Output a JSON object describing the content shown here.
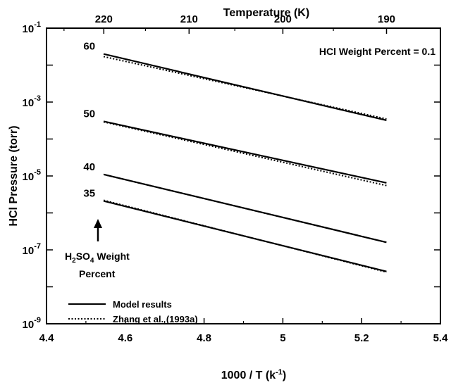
{
  "chart_data": {
    "type": "line",
    "title": "",
    "xlabel_main": "1000 / T (k",
    "xlabel_sup": "-1",
    "xlabel_end": ")",
    "ylabel": "HCl Pressure (torr)",
    "top_axis_label": "Temperature (K)",
    "xlim": [
      4.4,
      5.4
    ],
    "ylim": [
      1e-09,
      0.1
    ],
    "y_scale": "log",
    "grid": false,
    "x_ticks": [
      "4.4",
      "4.6",
      "4.8",
      "5",
      "5.2",
      "5.4"
    ],
    "y_ticks": [
      {
        "base": "10",
        "exp": "-1",
        "value": 0.1
      },
      {
        "base": "10",
        "exp": "-3",
        "value": 0.001
      },
      {
        "base": "10",
        "exp": "-5",
        "value": 1e-05
      },
      {
        "base": "10",
        "exp": "-7",
        "value": 1e-07
      },
      {
        "base": "10",
        "exp": "-9",
        "value": 1e-09
      }
    ],
    "top_ticks": [
      {
        "label": "220",
        "temperature": 220
      },
      {
        "label": "210",
        "temperature": 210
      },
      {
        "label": "200",
        "temperature": 200
      },
      {
        "label": "190",
        "temperature": 190
      }
    ],
    "annotation": "HCl Weight Percent = 0.1",
    "curve_labels": [
      "60",
      "50",
      "40",
      "35"
    ],
    "h2so4_label": {
      "h": "H",
      "sub1": "2",
      "so": "SO",
      "sub2": "4",
      "rest": " Weight",
      "line2": "Percent"
    },
    "series": [
      {
        "name": "Model results",
        "style": "solid",
        "lines": [
          {
            "label": "60",
            "x": [
              4.545,
              5.263
            ],
            "y": [
              0.02,
              0.00032
            ]
          },
          {
            "label": "50",
            "x": [
              4.545,
              5.263
            ],
            "y": [
              0.0003,
              6.5e-06
            ]
          },
          {
            "label": "40",
            "x": [
              4.545,
              5.263
            ],
            "y": [
              1.1e-05,
              1.6e-07
            ]
          },
          {
            "label": "35",
            "x": [
              4.545,
              5.263
            ],
            "y": [
              2.1e-06,
              2.6e-08
            ]
          }
        ]
      },
      {
        "name": "Zhang et al. (1993a)",
        "style": "dotted",
        "lines": [
          {
            "label": "60",
            "x": [
              4.545,
              5.263
            ],
            "y": [
              0.017,
              0.00035
            ]
          },
          {
            "label": "50",
            "x": [
              4.545,
              5.263
            ],
            "y": [
              0.00029,
              5.5e-06
            ]
          },
          {
            "label": "40",
            "x": [
              4.545,
              5.263
            ],
            "y": [
              1.1e-05,
              1.6e-07
            ]
          },
          {
            "label": "35",
            "x": [
              4.545,
              5.263
            ],
            "y": [
              2.2e-06,
              2.5e-08
            ]
          }
        ]
      }
    ],
    "legend_position": "bottom-left",
    "colors": {
      "line": "#000000",
      "background": "#ffffff"
    }
  }
}
